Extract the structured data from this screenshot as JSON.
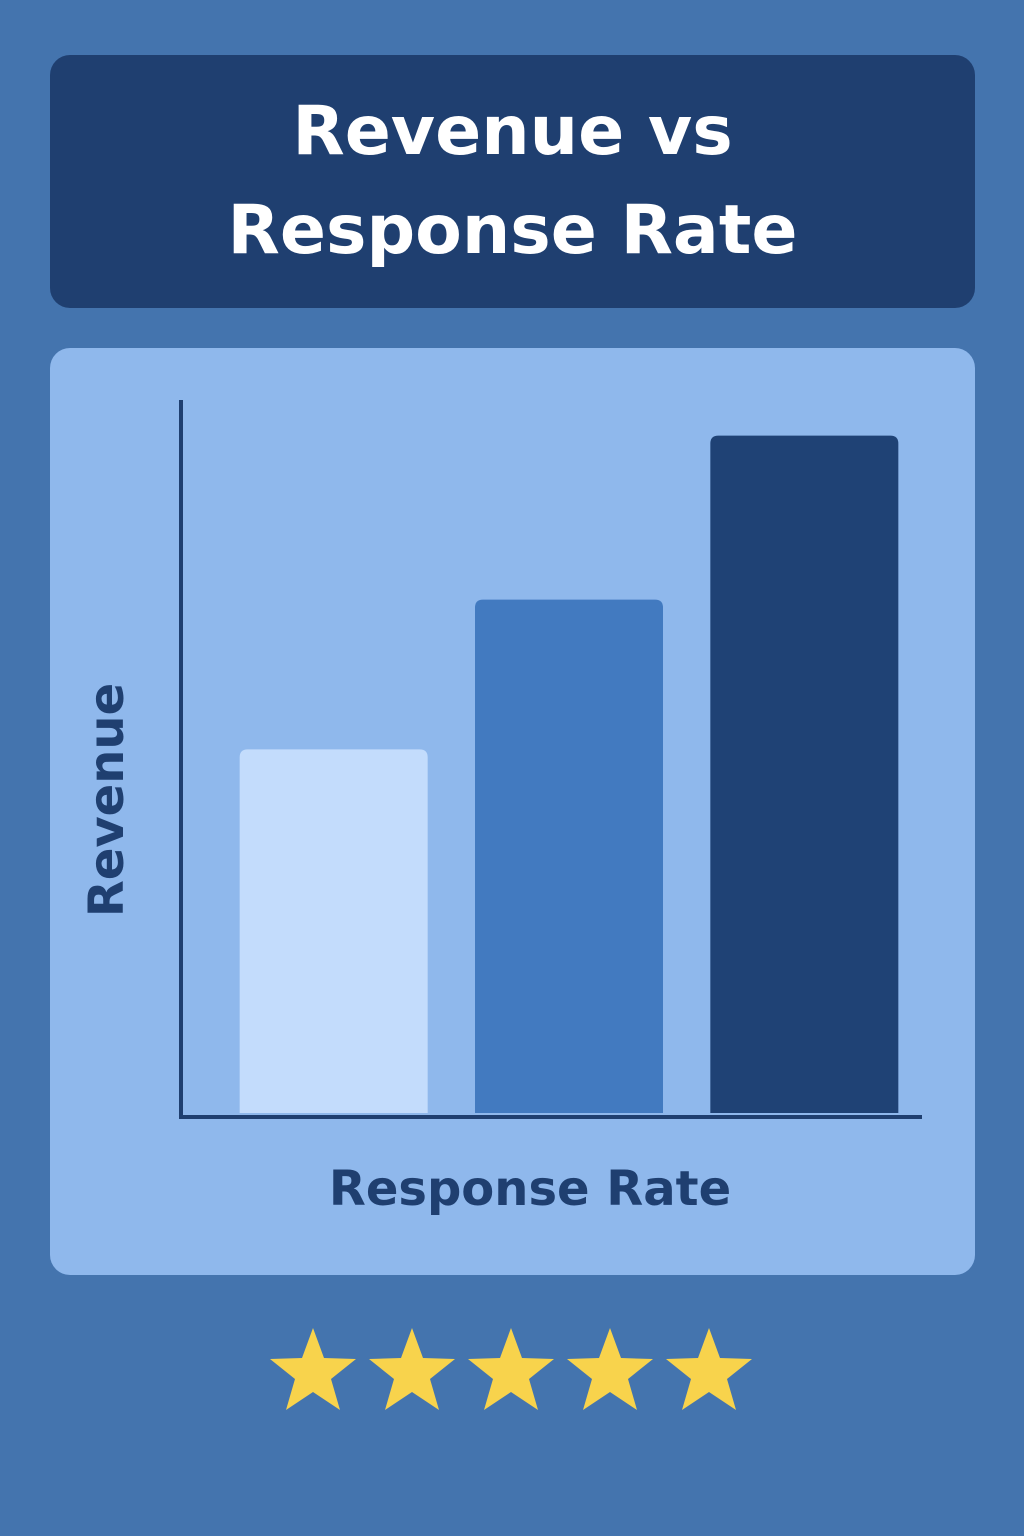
{
  "chart_data": {
    "type": "bar",
    "title": "Revenue vs Response Rate",
    "x_label": "Response Rate",
    "y_label": "Revenue",
    "categories": [
      null,
      null,
      null
    ],
    "values": [
      51,
      72,
      95
    ],
    "colors": [
      "#c3dcfc",
      "#427ac0",
      "#1f4275"
    ],
    "ylim": [
      0,
      100
    ]
  }
}
